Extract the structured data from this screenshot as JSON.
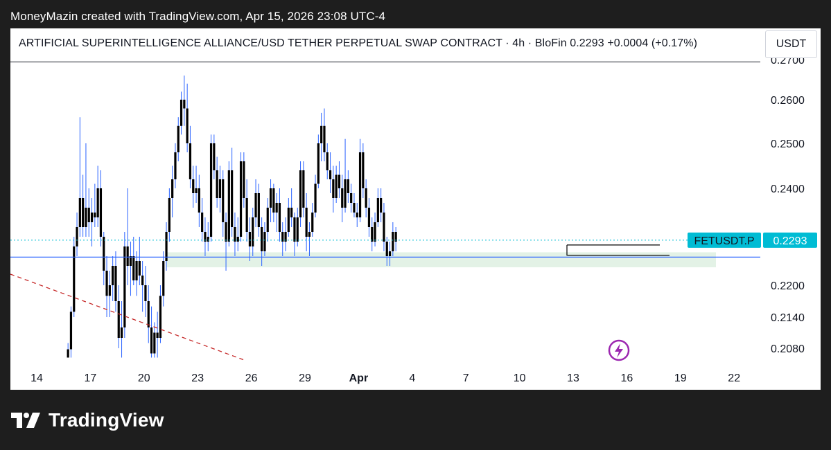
{
  "credit": "MoneyMazin created with TradingView.com, Apr 15, 2026 23:08 UTC-4",
  "header": {
    "symbol_name": "ARTIFICIAL SUPERINTELLIGENCE ALLIANCE/USD TETHER PERPETUAL SWAP CONTRACT",
    "interval": "4h",
    "exchange": "BloFin",
    "price": "0.2293",
    "change": "+0.0004 (+0.17%)",
    "full_text": "ARTIFICIAL SUPERINTELLIGENCE ALLIANCE/USD TETHER PERPETUAL SWAP CONTRACT · 4h · BloFin  0.2293  +0.0004 (+0.17%)",
    "currency": "USDT"
  },
  "footer": {
    "brand": "TradingView"
  },
  "colors": {
    "candle_up_wick": "#2962ff",
    "candle_body": "#000000",
    "price_line": "#00bcd4",
    "zone_fill": "#e3f2e6",
    "support_line": "#2962ff",
    "trendline": "#c62828",
    "flash_icon": "#9c27b0"
  },
  "chart_data": {
    "type": "candlestick",
    "symbol_tag": "FETUSDT.P",
    "last_price": 0.2293,
    "price_axis": {
      "ticks": [
        {
          "value": 0.26,
          "label": "0.2600"
        },
        {
          "value": 0.25,
          "label": "0.2500"
        },
        {
          "value": 0.24,
          "label": "0.2400"
        },
        {
          "value": 0.22,
          "label": "0.2200"
        },
        {
          "value": 0.214,
          "label": "0.2140"
        },
        {
          "value": 0.208,
          "label": "0.2080"
        }
      ],
      "top_partial_label": "0.2700",
      "scale": "non-linear"
    },
    "time_axis": {
      "labels": [
        "14",
        "17",
        "20",
        "23",
        "26",
        "29",
        "Apr",
        "4",
        "7",
        "10",
        "13",
        "16",
        "19",
        "22"
      ]
    },
    "support_zone": {
      "low": 0.2237,
      "high": 0.2268
    },
    "support_line": 0.2258,
    "range_box": {
      "low": 0.2262,
      "high": 0.2283
    },
    "trendline_points": [
      {
        "date": "Mar 14",
        "price": 0.2236
      },
      {
        "date": "Mar 26",
        "price": 0.2062
      }
    ],
    "candles_4h": [
      [
        0.2062,
        0.209,
        0.2062,
        0.2078
      ],
      [
        0.2078,
        0.216,
        0.2062,
        0.215
      ],
      [
        0.215,
        0.23,
        0.214,
        0.228
      ],
      [
        0.228,
        0.235,
        0.226,
        0.232
      ],
      [
        0.232,
        0.256,
        0.23,
        0.238
      ],
      [
        0.238,
        0.243,
        0.23,
        0.232
      ],
      [
        0.232,
        0.25,
        0.23,
        0.236
      ],
      [
        0.236,
        0.24,
        0.23,
        0.233
      ],
      [
        0.233,
        0.238,
        0.228,
        0.235
      ],
      [
        0.235,
        0.241,
        0.232,
        0.234
      ],
      [
        0.234,
        0.245,
        0.232,
        0.24
      ],
      [
        0.24,
        0.244,
        0.228,
        0.23
      ],
      [
        0.23,
        0.231,
        0.22,
        0.223
      ],
      [
        0.223,
        0.226,
        0.214,
        0.218
      ],
      [
        0.218,
        0.223,
        0.214,
        0.22
      ],
      [
        0.22,
        0.226,
        0.217,
        0.224
      ],
      [
        0.224,
        0.227,
        0.215,
        0.217
      ],
      [
        0.217,
        0.22,
        0.208,
        0.21
      ],
      [
        0.21,
        0.217,
        0.2062,
        0.212
      ],
      [
        0.212,
        0.231,
        0.21,
        0.228
      ],
      [
        0.228,
        0.24,
        0.22,
        0.224
      ],
      [
        0.224,
        0.229,
        0.218,
        0.226
      ],
      [
        0.226,
        0.23,
        0.22,
        0.221
      ],
      [
        0.221,
        0.227,
        0.218,
        0.225
      ],
      [
        0.225,
        0.23,
        0.22,
        0.222
      ],
      [
        0.222,
        0.225,
        0.215,
        0.22
      ],
      [
        0.22,
        0.224,
        0.214,
        0.217
      ],
      [
        0.217,
        0.22,
        0.209,
        0.212
      ],
      [
        0.212,
        0.216,
        0.2062,
        0.207
      ],
      [
        0.207,
        0.213,
        0.2062,
        0.211
      ],
      [
        0.211,
        0.215,
        0.2062,
        0.21
      ],
      [
        0.21,
        0.22,
        0.209,
        0.218
      ],
      [
        0.218,
        0.227,
        0.216,
        0.225
      ],
      [
        0.225,
        0.233,
        0.223,
        0.231
      ],
      [
        0.231,
        0.24,
        0.229,
        0.238
      ],
      [
        0.238,
        0.245,
        0.234,
        0.242
      ],
      [
        0.242,
        0.25,
        0.24,
        0.248
      ],
      [
        0.248,
        0.256,
        0.246,
        0.254
      ],
      [
        0.254,
        0.262,
        0.252,
        0.26
      ],
      [
        0.26,
        0.266,
        0.254,
        0.258
      ],
      [
        0.258,
        0.264,
        0.248,
        0.25
      ],
      [
        0.25,
        0.254,
        0.24,
        0.242
      ],
      [
        0.242,
        0.245,
        0.236,
        0.239
      ],
      [
        0.239,
        0.245,
        0.237,
        0.24
      ],
      [
        0.24,
        0.243,
        0.232,
        0.235
      ],
      [
        0.235,
        0.238,
        0.229,
        0.231
      ],
      [
        0.231,
        0.234,
        0.226,
        0.229
      ],
      [
        0.229,
        0.233,
        0.227,
        0.23
      ],
      [
        0.23,
        0.252,
        0.229,
        0.25
      ],
      [
        0.25,
        0.252,
        0.242,
        0.244
      ],
      [
        0.244,
        0.247,
        0.236,
        0.238
      ],
      [
        0.238,
        0.245,
        0.235,
        0.242
      ],
      [
        0.242,
        0.244,
        0.23,
        0.233
      ],
      [
        0.233,
        0.235,
        0.223,
        0.229
      ],
      [
        0.229,
        0.246,
        0.228,
        0.244
      ],
      [
        0.244,
        0.249,
        0.23,
        0.232
      ],
      [
        0.232,
        0.235,
        0.226,
        0.229
      ],
      [
        0.229,
        0.234,
        0.227,
        0.23
      ],
      [
        0.23,
        0.248,
        0.229,
        0.246
      ],
      [
        0.246,
        0.248,
        0.236,
        0.238
      ],
      [
        0.238,
        0.242,
        0.229,
        0.231
      ],
      [
        0.231,
        0.234,
        0.225,
        0.228
      ],
      [
        0.228,
        0.236,
        0.226,
        0.234
      ],
      [
        0.234,
        0.242,
        0.232,
        0.239
      ],
      [
        0.239,
        0.241,
        0.23,
        0.232
      ],
      [
        0.232,
        0.234,
        0.224,
        0.227
      ],
      [
        0.227,
        0.233,
        0.226,
        0.231
      ],
      [
        0.231,
        0.238,
        0.229,
        0.236
      ],
      [
        0.236,
        0.242,
        0.233,
        0.24
      ],
      [
        0.24,
        0.241,
        0.233,
        0.235
      ],
      [
        0.235,
        0.239,
        0.231,
        0.237
      ],
      [
        0.237,
        0.24,
        0.229,
        0.231
      ],
      [
        0.231,
        0.233,
        0.226,
        0.229
      ],
      [
        0.229,
        0.234,
        0.227,
        0.231
      ],
      [
        0.231,
        0.238,
        0.23,
        0.236
      ],
      [
        0.236,
        0.24,
        0.232,
        0.234
      ],
      [
        0.234,
        0.235,
        0.226,
        0.229
      ],
      [
        0.229,
        0.236,
        0.228,
        0.234
      ],
      [
        0.234,
        0.246,
        0.232,
        0.244
      ],
      [
        0.244,
        0.246,
        0.234,
        0.236
      ],
      [
        0.236,
        0.239,
        0.227,
        0.23
      ],
      [
        0.23,
        0.233,
        0.226,
        0.231
      ],
      [
        0.231,
        0.237,
        0.23,
        0.235
      ],
      [
        0.235,
        0.243,
        0.234,
        0.241
      ],
      [
        0.241,
        0.252,
        0.24,
        0.25
      ],
      [
        0.25,
        0.257,
        0.246,
        0.254
      ],
      [
        0.254,
        0.258,
        0.246,
        0.248
      ],
      [
        0.248,
        0.25,
        0.242,
        0.244
      ],
      [
        0.244,
        0.248,
        0.239,
        0.242
      ],
      [
        0.242,
        0.245,
        0.235,
        0.238
      ],
      [
        0.238,
        0.245,
        0.237,
        0.243
      ],
      [
        0.243,
        0.246,
        0.238,
        0.24
      ],
      [
        0.24,
        0.243,
        0.233,
        0.236
      ],
      [
        0.236,
        0.251,
        0.235,
        0.242
      ],
      [
        0.242,
        0.244,
        0.237,
        0.239
      ],
      [
        0.239,
        0.241,
        0.235,
        0.237
      ],
      [
        0.237,
        0.239,
        0.234,
        0.235
      ],
      [
        0.235,
        0.237,
        0.232,
        0.234
      ],
      [
        0.234,
        0.251,
        0.233,
        0.248
      ],
      [
        0.248,
        0.25,
        0.238,
        0.24
      ],
      [
        0.24,
        0.242,
        0.234,
        0.236
      ],
      [
        0.236,
        0.238,
        0.23,
        0.232
      ],
      [
        0.232,
        0.234,
        0.227,
        0.229
      ],
      [
        0.229,
        0.235,
        0.228,
        0.233
      ],
      [
        0.233,
        0.24,
        0.232,
        0.238
      ],
      [
        0.238,
        0.24,
        0.233,
        0.235
      ],
      [
        0.235,
        0.237,
        0.227,
        0.229
      ],
      [
        0.229,
        0.23,
        0.224,
        0.226
      ],
      [
        0.226,
        0.229,
        0.224,
        0.227
      ],
      [
        0.227,
        0.233,
        0.226,
        0.231
      ],
      [
        0.231,
        0.232,
        0.227,
        0.229
      ]
    ]
  }
}
